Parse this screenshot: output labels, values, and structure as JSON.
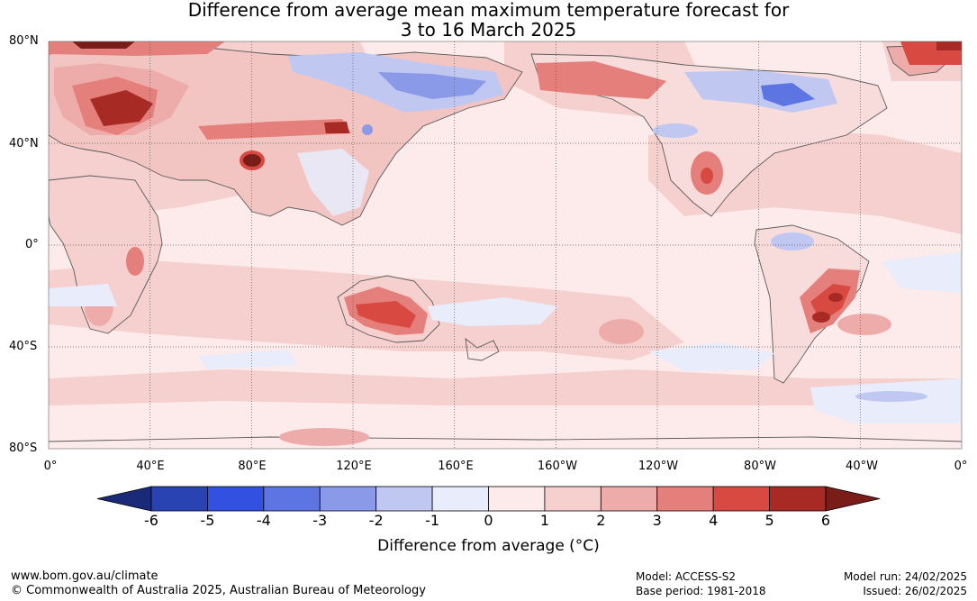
{
  "header": {
    "title_line1": "Difference from average mean maximum temperature forecast for",
    "title_line2": "3 to 16 March 2025"
  },
  "map": {
    "lat_labels": [
      "80°N",
      "40°N",
      "0°",
      "40°S",
      "80°S"
    ],
    "lon_labels": [
      "0°",
      "40°E",
      "80°E",
      "120°E",
      "160°E",
      "160°W",
      "120°W",
      "80°W",
      "40°W",
      "0°"
    ],
    "ocean_color": "#fcebea",
    "coastline_color": "#5a5a5a",
    "anomaly_regions": [
      {
        "region": "Northern Europe / western Russia",
        "anomaly_c": 4
      },
      {
        "region": "Central Asia",
        "anomaly_c": 4
      },
      {
        "region": "Tibetan Plateau",
        "anomaly_c": 6
      },
      {
        "region": "Siberia",
        "anomaly_c": -2
      },
      {
        "region": "Alaska",
        "anomaly_c": 3
      },
      {
        "region": "Canada / Hudson Bay",
        "anomaly_c": -3
      },
      {
        "region": "Mexico",
        "anomaly_c": 3
      },
      {
        "region": "Australia",
        "anomaly_c": 4
      },
      {
        "region": "Southern Brazil / Paraguay",
        "anomaly_c": 5
      },
      {
        "region": "Southern Ocean",
        "anomaly_c": -1
      }
    ]
  },
  "colorbar": {
    "levels": [
      "-6",
      "-5",
      "-4",
      "-3",
      "-2",
      "-1",
      "0",
      "1",
      "2",
      "3",
      "4",
      "5",
      "6"
    ],
    "colors": [
      "#1b2a78",
      "#2a43b3",
      "#3251e0",
      "#5d74e3",
      "#8a9ae8",
      "#c0c8f2",
      "#e8ecfb",
      "#fcebea",
      "#f5d0ce",
      "#edabaa",
      "#e57f7b",
      "#d84a41",
      "#a82a24",
      "#7a1c17"
    ],
    "label": "Difference from average (°C)"
  },
  "footer": {
    "website": "www.bom.gov.au/climate",
    "copyright": "© Commonwealth of Australia 2025, Australian Bureau of Meteorology",
    "model": "Model: ACCESS-S2",
    "base_period": "Base period: 1981-2018",
    "model_run": "Model run: 24/02/2025",
    "issued": "Issued: 26/02/2025"
  }
}
